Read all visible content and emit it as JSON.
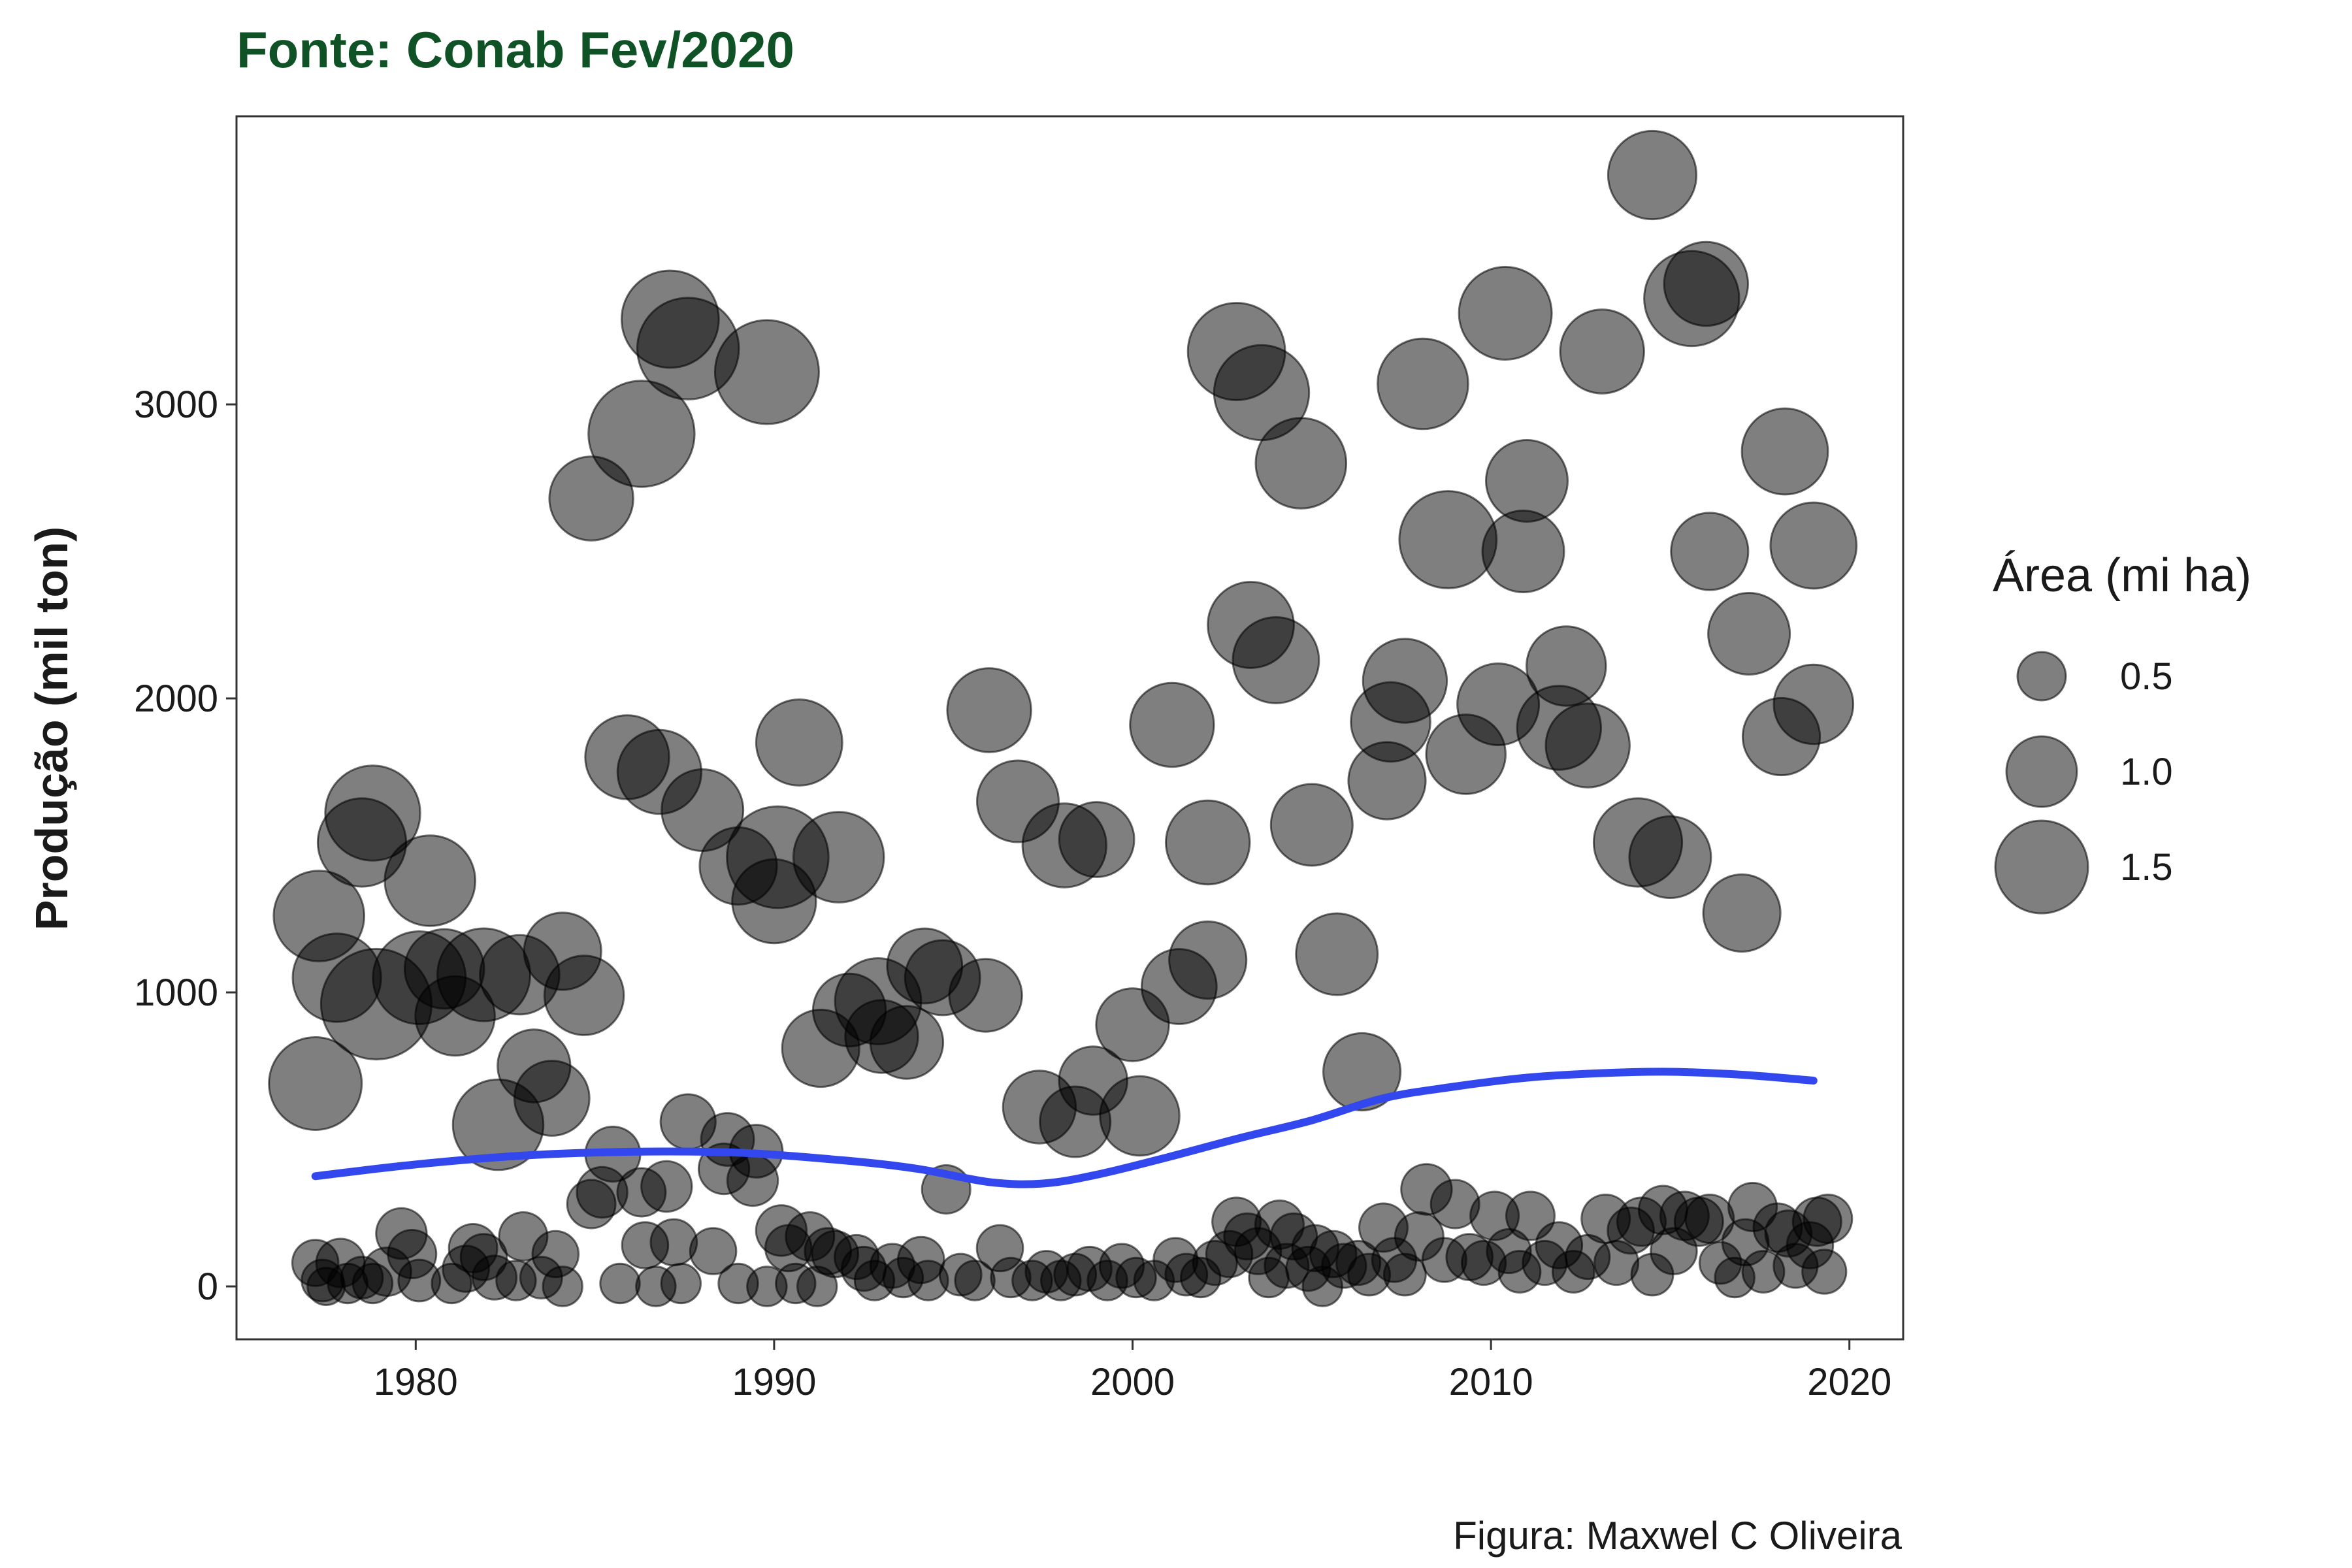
{
  "chart_data": {
    "type": "scatter",
    "subtitle": "Fonte: Conab Fev/2020",
    "caption": "Figura: Maxwel C Oliveira",
    "xlabel": "",
    "ylabel": "Produção (mil ton)",
    "xlim": [
      1975,
      2021.5
    ],
    "ylim": [
      -180,
      3980
    ],
    "xticks": [
      1980,
      1990,
      2000,
      2010,
      2020
    ],
    "yticks": [
      0,
      1000,
      2000,
      3000
    ],
    "grid": false,
    "legend": {
      "title": "Área (mi ha)",
      "position": "right",
      "entries": [
        {
          "label": "0.5",
          "size": 0.5
        },
        {
          "label": "1.0",
          "size": 1.0
        },
        {
          "label": "1.5",
          "size": 1.5
        }
      ]
    },
    "colors": {
      "points": "#000000",
      "trend": "#3347ee",
      "subtitle": "#0f5226"
    },
    "points_columns": [
      "year",
      "production",
      "area"
    ],
    "points": [
      [
        1977.2,
        690,
        1.5
      ],
      [
        1977.3,
        1260,
        1.45
      ],
      [
        1977.8,
        1050,
        1.4
      ],
      [
        1978.5,
        1510,
        1.4
      ],
      [
        1978.8,
        1610,
        1.55
      ],
      [
        1978.9,
        960,
        1.9
      ],
      [
        1980.4,
        1380,
        1.45
      ],
      [
        1980.1,
        1050,
        1.5
      ],
      [
        1980.8,
        1080,
        1.2
      ],
      [
        1981.1,
        920,
        1.2
      ],
      [
        1981.9,
        1060,
        1.5
      ],
      [
        1982.3,
        550,
        1.45
      ],
      [
        1982.9,
        1060,
        1.2
      ],
      [
        1983.3,
        750,
        1.05
      ],
      [
        1983.8,
        640,
        1.1
      ],
      [
        1984.1,
        1140,
        1.15
      ],
      [
        1984.7,
        990,
        1.2
      ],
      [
        1984.9,
        2680,
        1.3
      ],
      [
        1985.9,
        1800,
        1.3
      ],
      [
        1986.3,
        2900,
        1.8
      ],
      [
        1986.8,
        1750,
        1.3
      ],
      [
        1987.1,
        3290,
        1.6
      ],
      [
        1987.6,
        3190,
        1.7
      ],
      [
        1988.0,
        1620,
        1.25
      ],
      [
        1989.0,
        1430,
        1.15
      ],
      [
        1989.8,
        3110,
        1.75
      ],
      [
        1990.1,
        1460,
        1.7
      ],
      [
        1990.0,
        1310,
        1.3
      ],
      [
        1990.7,
        1850,
        1.35
      ],
      [
        1991.3,
        810,
        1.15
      ],
      [
        1991.8,
        1460,
        1.45
      ],
      [
        1992.1,
        940,
        1.05
      ],
      [
        1992.9,
        970,
        1.35
      ],
      [
        1993.0,
        850,
        1.05
      ],
      [
        1993.7,
        830,
        1.05
      ],
      [
        1994.2,
        1090,
        1.1
      ],
      [
        1994.7,
        1050,
        1.1
      ],
      [
        1995.9,
        990,
        1.05
      ],
      [
        1996.0,
        1960,
        1.3
      ],
      [
        1996.8,
        1650,
        1.25
      ],
      [
        1997.4,
        610,
        1.05
      ],
      [
        1998.1,
        1500,
        1.3
      ],
      [
        1998.4,
        560,
        1.0
      ],
      [
        1998.9,
        700,
        0.95
      ],
      [
        1999.0,
        1520,
        1.1
      ],
      [
        2000.0,
        890,
        1.05
      ],
      [
        2000.2,
        580,
        1.2
      ],
      [
        2001.1,
        1910,
        1.3
      ],
      [
        2001.3,
        1020,
        1.1
      ],
      [
        2002.1,
        1510,
        1.3
      ],
      [
        2002.1,
        1110,
        1.15
      ],
      [
        2002.9,
        3180,
        1.6
      ],
      [
        2003.3,
        2250,
        1.35
      ],
      [
        2003.6,
        3040,
        1.55
      ],
      [
        2004.0,
        2130,
        1.35
      ],
      [
        2004.7,
        2800,
        1.45
      ],
      [
        2005.0,
        1570,
        1.25
      ],
      [
        2005.7,
        1130,
        1.25
      ],
      [
        2006.4,
        730,
        1.15
      ],
      [
        2007.1,
        1720,
        1.15
      ],
      [
        2007.2,
        1920,
        1.2
      ],
      [
        2007.6,
        2060,
        1.3
      ],
      [
        2008.1,
        3070,
        1.45
      ],
      [
        2008.8,
        2540,
        1.6
      ],
      [
        2009.3,
        1810,
        1.2
      ],
      [
        2010.2,
        1980,
        1.25
      ],
      [
        2010.4,
        3310,
        1.5
      ],
      [
        2010.9,
        2500,
        1.25
      ],
      [
        2011.0,
        2740,
        1.25
      ],
      [
        2011.9,
        1900,
        1.3
      ],
      [
        2012.1,
        2110,
        1.2
      ],
      [
        2012.7,
        1840,
        1.3
      ],
      [
        2013.1,
        3180,
        1.3
      ],
      [
        2014.1,
        1510,
        1.4
      ],
      [
        2014.5,
        3780,
        1.4
      ],
      [
        2015.0,
        1460,
        1.25
      ],
      [
        2015.6,
        3360,
        1.55
      ],
      [
        2016.0,
        3410,
        1.3
      ],
      [
        2016.1,
        2500,
        1.15
      ],
      [
        2017.0,
        1270,
        1.15
      ],
      [
        2017.2,
        2220,
        1.25
      ],
      [
        2018.1,
        1870,
        1.15
      ],
      [
        2018.2,
        2840,
        1.35
      ],
      [
        2019.0,
        2520,
        1.35
      ],
      [
        2019.0,
        1980,
        1.2
      ],
      [
        1977.2,
        80,
        0.45
      ],
      [
        1977.4,
        20,
        0.35
      ],
      [
        1977.5,
        0,
        0.25
      ],
      [
        1977.9,
        80,
        0.5
      ],
      [
        1978.1,
        10,
        0.3
      ],
      [
        1978.5,
        30,
        0.35
      ],
      [
        1978.8,
        10,
        0.3
      ],
      [
        1979.2,
        50,
        0.5
      ],
      [
        1979.6,
        180,
        0.55
      ],
      [
        1979.9,
        110,
        0.5
      ],
      [
        1980.1,
        20,
        0.35
      ],
      [
        1981.0,
        10,
        0.3
      ],
      [
        1981.4,
        60,
        0.45
      ],
      [
        1981.6,
        130,
        0.5
      ],
      [
        1981.9,
        100,
        0.45
      ],
      [
        1982.2,
        30,
        0.4
      ],
      [
        1982.8,
        20,
        0.3
      ],
      [
        1983.0,
        170,
        0.5
      ],
      [
        1983.5,
        30,
        0.35
      ],
      [
        1983.9,
        110,
        0.45
      ],
      [
        1984.1,
        0,
        0.3
      ],
      [
        1984.9,
        280,
        0.5
      ],
      [
        1985.2,
        320,
        0.55
      ],
      [
        1985.5,
        450,
        0.65
      ],
      [
        1985.7,
        10,
        0.3
      ],
      [
        1986.3,
        320,
        0.5
      ],
      [
        1986.4,
        140,
        0.45
      ],
      [
        1986.7,
        0,
        0.3
      ],
      [
        1987.0,
        340,
        0.55
      ],
      [
        1987.2,
        150,
        0.45
      ],
      [
        1987.4,
        10,
        0.3
      ],
      [
        1987.6,
        560,
        0.65
      ],
      [
        1988.3,
        120,
        0.45
      ],
      [
        1988.6,
        400,
        0.55
      ],
      [
        1988.7,
        500,
        0.6
      ],
      [
        1989.0,
        10,
        0.3
      ],
      [
        1989.4,
        360,
        0.55
      ],
      [
        1989.5,
        460,
        0.6
      ],
      [
        1989.8,
        0,
        0.3
      ],
      [
        1990.2,
        190,
        0.55
      ],
      [
        1990.4,
        130,
        0.45
      ],
      [
        1990.6,
        10,
        0.3
      ],
      [
        1991.0,
        170,
        0.5
      ],
      [
        1991.2,
        0,
        0.3
      ],
      [
        1991.5,
        120,
        0.45
      ],
      [
        1991.7,
        110,
        0.45
      ],
      [
        1992.3,
        100,
        0.4
      ],
      [
        1992.5,
        60,
        0.4
      ],
      [
        1992.8,
        20,
        0.3
      ],
      [
        1993.3,
        70,
        0.4
      ],
      [
        1993.6,
        30,
        0.3
      ],
      [
        1994.1,
        90,
        0.45
      ],
      [
        1994.3,
        20,
        0.3
      ],
      [
        1994.8,
        330,
        0.5
      ],
      [
        1995.2,
        40,
        0.35
      ],
      [
        1995.6,
        20,
        0.3
      ],
      [
        1996.3,
        130,
        0.45
      ],
      [
        1996.6,
        30,
        0.3
      ],
      [
        1997.2,
        20,
        0.3
      ],
      [
        1997.6,
        50,
        0.35
      ],
      [
        1998.0,
        20,
        0.3
      ],
      [
        1998.4,
        40,
        0.35
      ],
      [
        1998.8,
        60,
        0.4
      ],
      [
        1999.3,
        20,
        0.3
      ],
      [
        1999.7,
        70,
        0.4
      ],
      [
        2000.1,
        30,
        0.3
      ],
      [
        2000.6,
        20,
        0.3
      ],
      [
        2001.2,
        90,
        0.4
      ],
      [
        2001.5,
        40,
        0.35
      ],
      [
        2001.9,
        30,
        0.3
      ],
      [
        2002.3,
        80,
        0.4
      ],
      [
        2002.7,
        110,
        0.45
      ],
      [
        2002.9,
        220,
        0.5
      ],
      [
        2003.2,
        170,
        0.45
      ],
      [
        2003.5,
        120,
        0.45
      ],
      [
        2003.8,
        30,
        0.3
      ],
      [
        2004.1,
        210,
        0.5
      ],
      [
        2004.3,
        70,
        0.4
      ],
      [
        2004.5,
        170,
        0.45
      ],
      [
        2004.9,
        60,
        0.4
      ],
      [
        2005.1,
        130,
        0.45
      ],
      [
        2005.3,
        0,
        0.3
      ],
      [
        2005.6,
        110,
        0.45
      ],
      [
        2005.9,
        70,
        0.4
      ],
      [
        2006.3,
        80,
        0.4
      ],
      [
        2006.6,
        40,
        0.35
      ],
      [
        2007.0,
        200,
        0.5
      ],
      [
        2007.3,
        90,
        0.4
      ],
      [
        2007.6,
        40,
        0.35
      ],
      [
        2008.0,
        170,
        0.5
      ],
      [
        2008.2,
        330,
        0.55
      ],
      [
        2008.7,
        90,
        0.4
      ],
      [
        2009.0,
        280,
        0.5
      ],
      [
        2009.4,
        100,
        0.45
      ],
      [
        2009.8,
        80,
        0.4
      ],
      [
        2010.1,
        240,
        0.5
      ],
      [
        2010.5,
        120,
        0.4
      ],
      [
        2010.8,
        50,
        0.35
      ],
      [
        2011.1,
        240,
        0.5
      ],
      [
        2011.5,
        80,
        0.4
      ],
      [
        2011.9,
        140,
        0.45
      ],
      [
        2012.3,
        50,
        0.35
      ],
      [
        2012.7,
        100,
        0.4
      ],
      [
        2013.2,
        230,
        0.5
      ],
      [
        2013.5,
        80,
        0.4
      ],
      [
        2013.9,
        190,
        0.45
      ],
      [
        2014.2,
        220,
        0.5
      ],
      [
        2014.5,
        40,
        0.35
      ],
      [
        2014.8,
        260,
        0.5
      ],
      [
        2015.1,
        120,
        0.45
      ],
      [
        2015.4,
        240,
        0.5
      ],
      [
        2015.8,
        220,
        0.5
      ],
      [
        2016.1,
        230,
        0.5
      ],
      [
        2016.4,
        80,
        0.35
      ],
      [
        2016.8,
        30,
        0.3
      ],
      [
        2017.1,
        150,
        0.45
      ],
      [
        2017.3,
        270,
        0.5
      ],
      [
        2017.6,
        50,
        0.35
      ],
      [
        2018.0,
        200,
        0.5
      ],
      [
        2018.3,
        180,
        0.45
      ],
      [
        2018.5,
        70,
        0.4
      ],
      [
        2018.9,
        140,
        0.45
      ],
      [
        2019.1,
        220,
        0.5
      ],
      [
        2019.3,
        50,
        0.4
      ],
      [
        2019.4,
        230,
        0.5
      ]
    ],
    "trend": {
      "x": [
        1977.2,
        1980,
        1983,
        1986,
        1989,
        1992,
        1994,
        1996,
        1997.5,
        1999,
        2001,
        2003,
        2005,
        2007,
        2009,
        2011,
        2013,
        2015,
        2017,
        2019
      ],
      "y": [
        375,
        415,
        445,
        458,
        455,
        428,
        400,
        355,
        350,
        380,
        440,
        505,
        565,
        640,
        680,
        710,
        725,
        730,
        720,
        700
      ]
    }
  }
}
